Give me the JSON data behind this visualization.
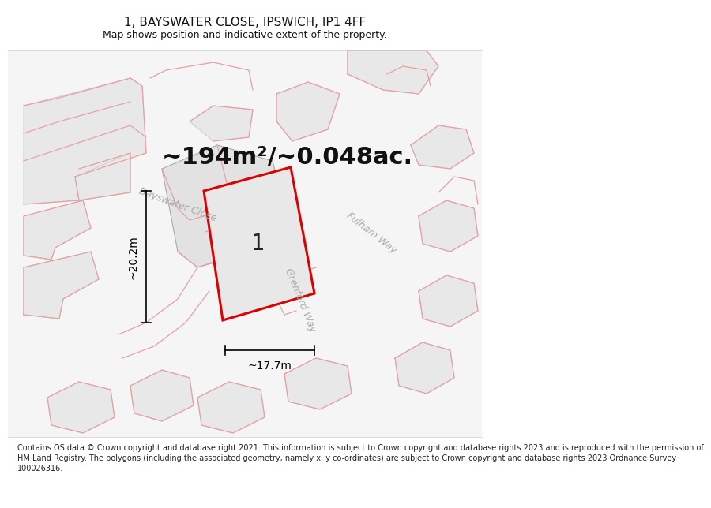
{
  "title_line1": "1, BAYSWATER CLOSE, IPSWICH, IP1 4FF",
  "title_line2": "Map shows position and indicative extent of the property.",
  "area_text": "~194m²/~0.048ac.",
  "label_number": "1",
  "dim_horizontal": "~17.7m",
  "dim_vertical": "~20.2m",
  "street_bayswater": "Bayswater Close",
  "street_fulham": "Fulham Way",
  "street_grenford": "Grenford Way",
  "footer_text": "Contains OS data © Crown copyright and database right 2021. This information is subject to Crown copyright and database rights 2023 and is reproduced with the permission of HM Land Registry. The polygons (including the associated geometry, namely x, y co-ordinates) are subject to Crown copyright and database rights 2023 Ordnance Survey 100026316.",
  "map_bg": "#f7f7f7",
  "block_fill": "#e8e8e8",
  "block_edge": "#cccccc",
  "pink_color": "#e8a0a0",
  "road_fill": "#f0f0f0",
  "plot_fill": "#e4e4e4",
  "plot_edge": "#bbbbbb",
  "red_edge": "#dd0000",
  "dim_color": "#000000",
  "title_fontsize": 11,
  "subtitle_fontsize": 9,
  "area_fontsize": 22,
  "label_fontsize": 20,
  "dim_fontsize": 10,
  "street_fontsize": 9,
  "footer_fontsize": 7
}
